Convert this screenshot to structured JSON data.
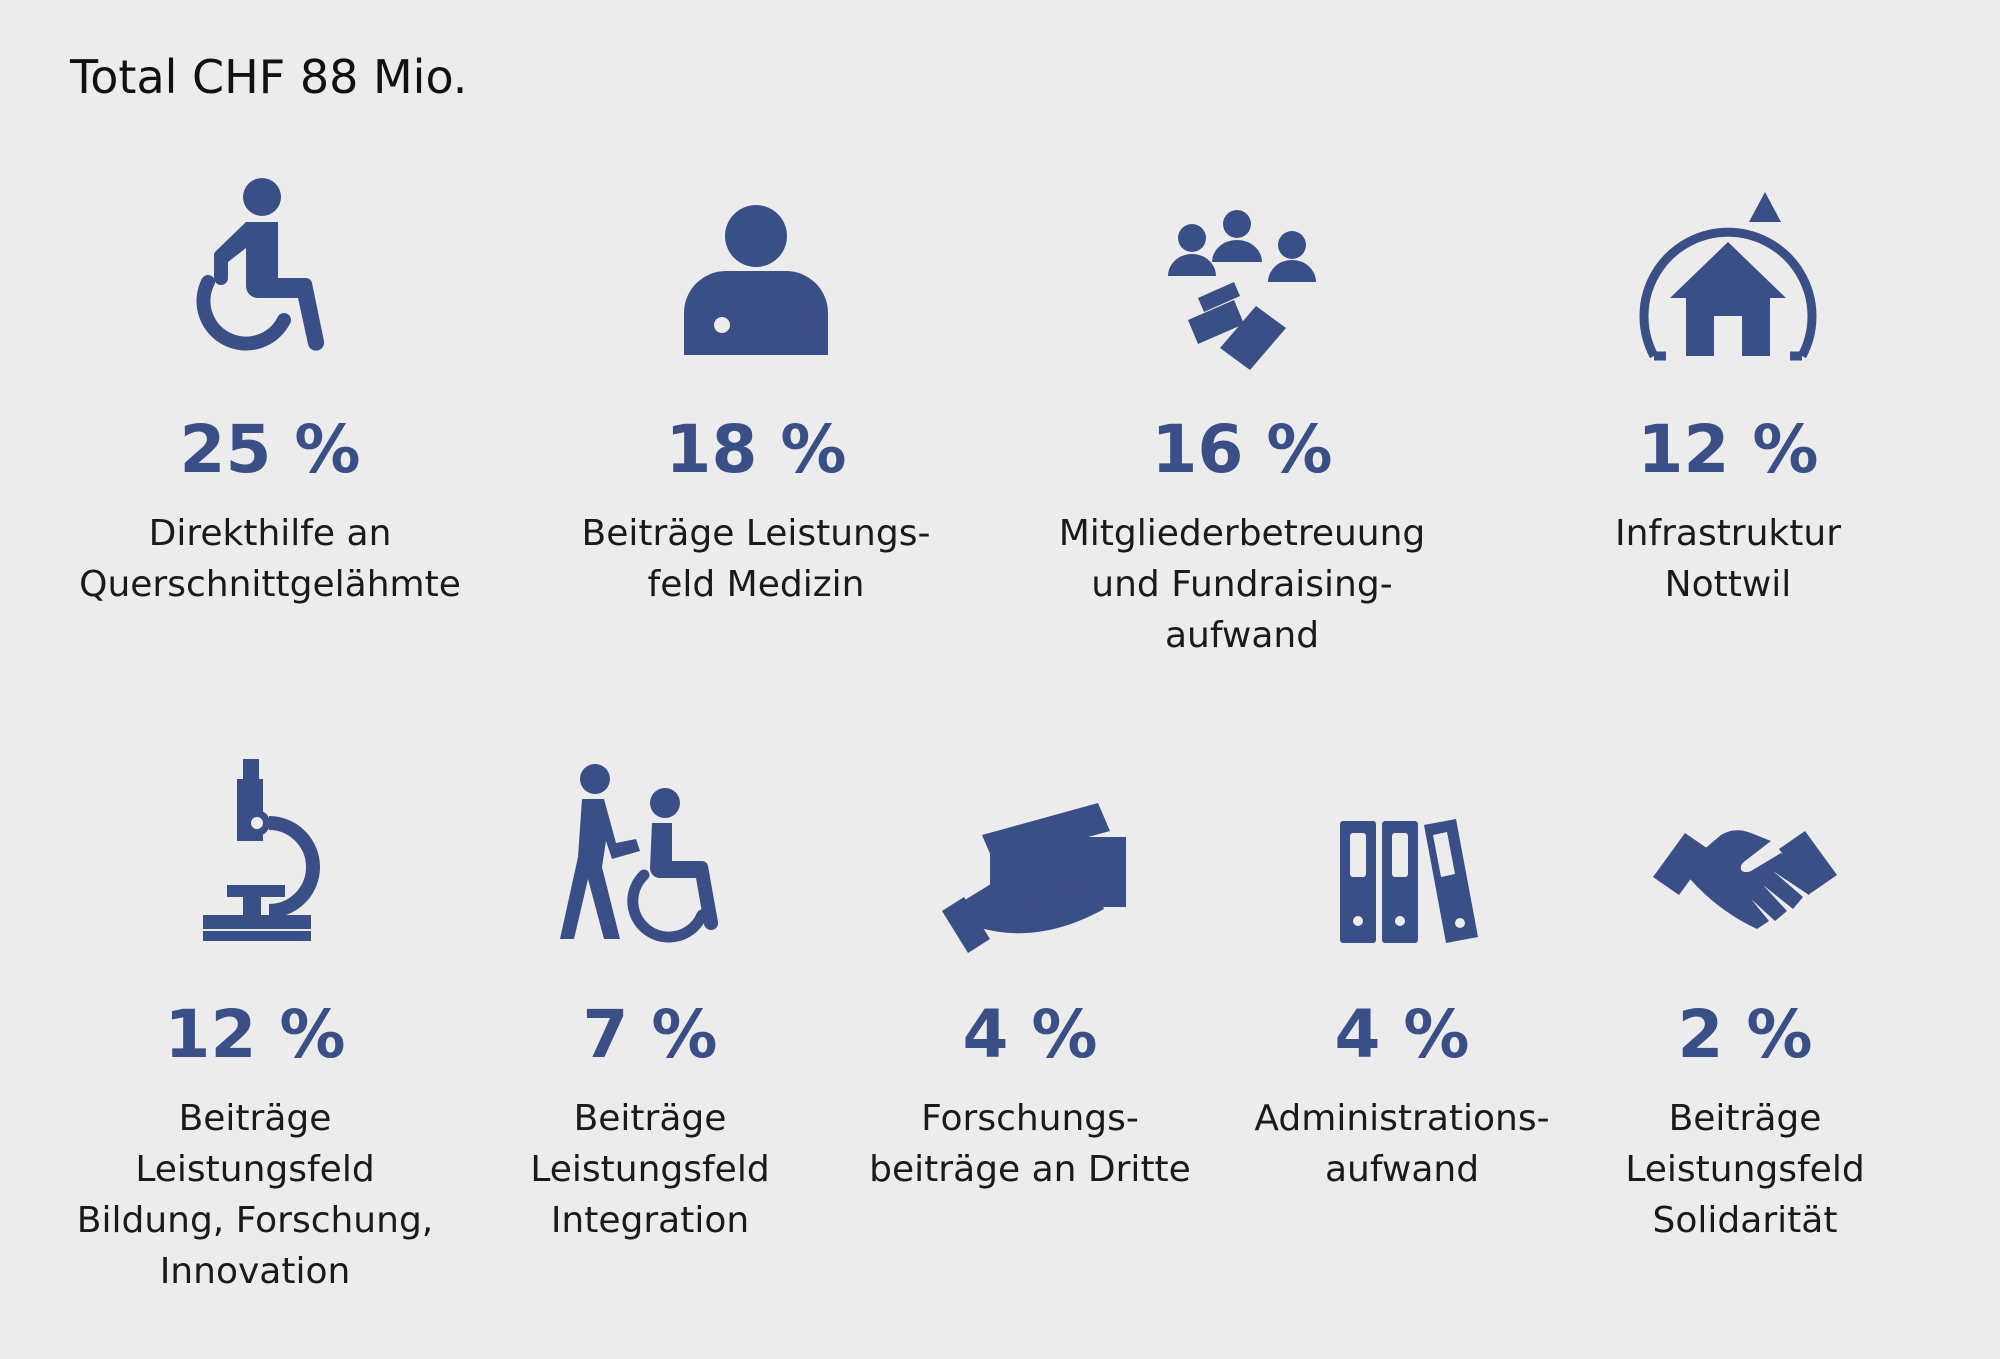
{
  "header": {
    "title": "Total CHF 88 Mio."
  },
  "items": [
    {
      "icon": "wheelchair-icon",
      "percent": "25 %",
      "lines": [
        "Direkthilfe an",
        "Querschnittgelähmte"
      ]
    },
    {
      "icon": "doctor-icon",
      "percent": "18 %",
      "lines": [
        "Beiträge Leistungs-",
        "feld Medizin"
      ]
    },
    {
      "icon": "members-fundraising-icon",
      "percent": "16 %",
      "lines": [
        "Mitgliederbetreuung",
        "und Fundraising-",
        "aufwand"
      ]
    },
    {
      "icon": "house-cycle-icon",
      "percent": "12 %",
      "lines": [
        "Infrastruktur",
        "Nottwil"
      ]
    },
    {
      "icon": "microscope-icon",
      "percent": "12 %",
      "lines": [
        "Beiträge",
        "Leistungsfeld",
        "Bildung, Forschung,",
        "Innovation"
      ]
    },
    {
      "icon": "wheelchair-assist-icon",
      "percent": "7 %",
      "lines": [
        "Beiträge",
        "Leistungsfeld",
        "Integration"
      ]
    },
    {
      "icon": "money-hand-icon",
      "percent": "4 %",
      "lines": [
        "Forschungs-",
        "beiträge an Dritte"
      ]
    },
    {
      "icon": "binders-icon",
      "percent": "4 %",
      "lines": [
        "Administrations-",
        "aufwand"
      ]
    },
    {
      "icon": "handshake-icon",
      "percent": "2 %",
      "lines": [
        "Beiträge",
        "Leistungsfeld",
        "Solidarität"
      ]
    }
  ],
  "colors": {
    "accent": "#3b4f87",
    "background": "#ececec",
    "text": "#1a1a1a"
  }
}
